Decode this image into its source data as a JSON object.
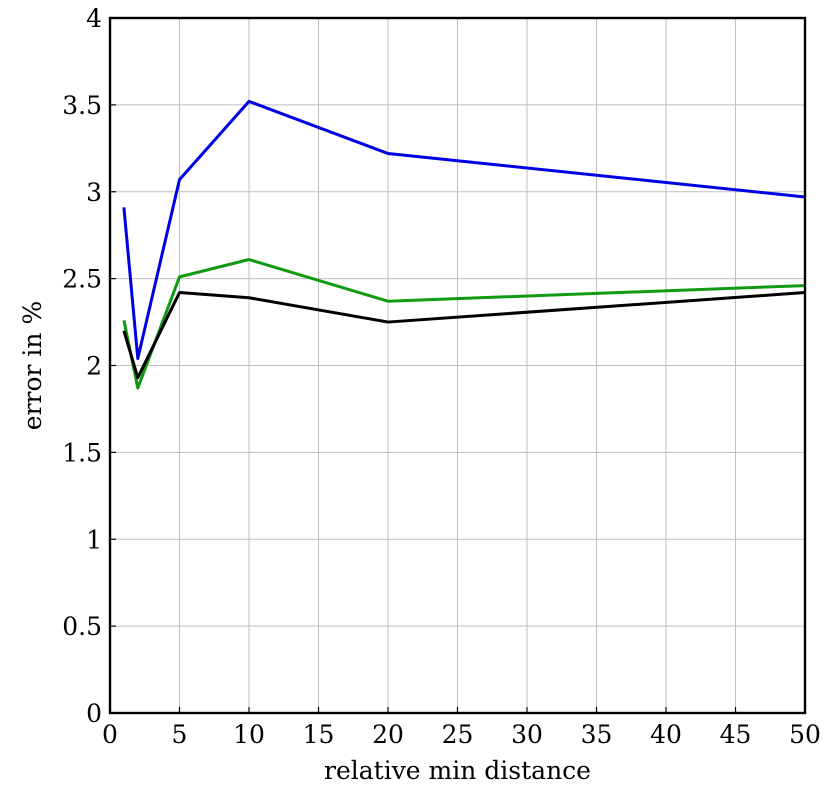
{
  "chart_data": {
    "type": "line",
    "title": "",
    "xlabel": "relative min distance",
    "ylabel": "error in %",
    "xlim": [
      0,
      50
    ],
    "ylim": [
      0,
      4
    ],
    "xticks": [
      0,
      5,
      10,
      15,
      20,
      25,
      30,
      35,
      40,
      45,
      50
    ],
    "yticks": [
      0,
      0.5,
      1,
      1.5,
      2,
      2.5,
      3,
      3.5,
      4
    ],
    "xtick_labels": [
      "0",
      "5",
      "10",
      "15",
      "20",
      "25",
      "30",
      "35",
      "40",
      "45",
      "50"
    ],
    "ytick_labels": [
      "0",
      "0.5",
      "1",
      "1.5",
      "2",
      "2.5",
      "3",
      "3.5",
      "4"
    ],
    "grid": true,
    "x": [
      1,
      2,
      5,
      10,
      20,
      50
    ],
    "series": [
      {
        "color": "#0000e6",
        "values": [
          2.91,
          2.04,
          3.07,
          3.52,
          3.22,
          2.97
        ]
      },
      {
        "color": "#119a11",
        "values": [
          2.26,
          1.87,
          2.51,
          2.61,
          2.37,
          2.46
        ]
      },
      {
        "color": "#000000",
        "values": [
          2.2,
          1.93,
          2.42,
          2.39,
          2.25,
          2.42
        ]
      }
    ]
  }
}
